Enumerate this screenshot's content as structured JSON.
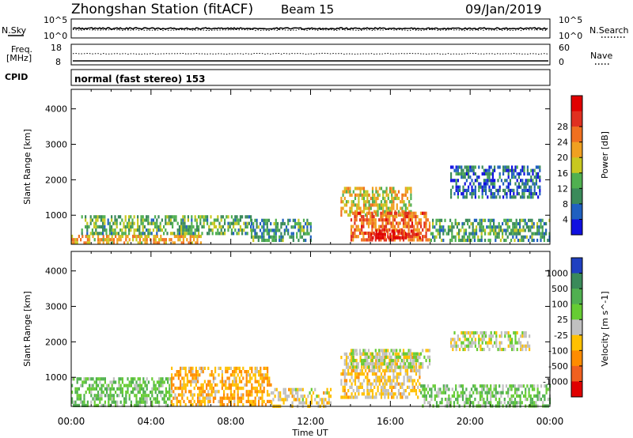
{
  "header": {
    "title": "Zhongshan Station (fitACF)",
    "beam": "Beam 15",
    "date": "09/Jan/2019"
  },
  "status_panels": {
    "nsky_label": "N.Sky",
    "nsky_ticks": [
      "10^5",
      "10^0"
    ],
    "nsearch_label": "N.Search",
    "nsearch_ticks": [
      "10^5",
      "10^0"
    ],
    "freq_label_line1": "Freq.",
    "freq_label_line2": "[MHz]",
    "freq_ticks": [
      "18",
      "8"
    ],
    "nave_label": "Nave",
    "nave_ticks": [
      "60",
      "0"
    ],
    "cpid_label": "CPID",
    "cpid_text": "normal (fast stereo) 153"
  },
  "colors": {
    "power_scale": [
      "#1010e0",
      "#2060c0",
      "#3a8a5a",
      "#50b050",
      "#c8c820",
      "#f0a020",
      "#f07020",
      "#e03020",
      "#e00000"
    ],
    "velocity_scale": [
      "#2040c0",
      "#3a8a5a",
      "#50b050",
      "#66cc33",
      "#c0c0c0",
      "#ffc000",
      "#ff8c00",
      "#f06020",
      "#e00000"
    ]
  },
  "chart_data": [
    {
      "type": "heatmap",
      "title": "",
      "xlabel": "",
      "ylabel": "Slant Range [km]",
      "x_tick_labels": [
        "00:00",
        "04:00",
        "08:00",
        "12:00",
        "16:00",
        "20:00",
        "00:00"
      ],
      "y_ticks": [
        1000,
        2000,
        3000,
        4000
      ],
      "ylim": [
        180,
        4550
      ],
      "colorbar_label": "Power [dB]",
      "colorbar_ticks": [
        "4",
        "8",
        "12",
        "16",
        "20",
        "24",
        "28"
      ],
      "colorbar_range": [
        0,
        30
      ],
      "regions": [
        {
          "t0": 0.0,
          "t1": 6.5,
          "r0": 200,
          "r1": 450,
          "v": 18
        },
        {
          "t0": 0.5,
          "t1": 9.0,
          "r0": 450,
          "r1": 1000,
          "v": 11
        },
        {
          "t0": 9.0,
          "t1": 12.0,
          "r0": 300,
          "r1": 900,
          "v": 9
        },
        {
          "t0": 13.5,
          "t1": 17.0,
          "r0": 1000,
          "r1": 1800,
          "v": 16
        },
        {
          "t0": 14.0,
          "t1": 18.0,
          "r0": 350,
          "r1": 1100,
          "v": 22
        },
        {
          "t0": 15.0,
          "t1": 17.5,
          "r0": 350,
          "r1": 600,
          "v": 28
        },
        {
          "t0": 18.0,
          "t1": 24.0,
          "r0": 250,
          "r1": 900,
          "v": 10
        },
        {
          "t0": 19.0,
          "t1": 23.5,
          "r0": 1500,
          "r1": 2400,
          "v": 6
        }
      ]
    },
    {
      "type": "heatmap",
      "title": "",
      "xlabel": "Time UT",
      "ylabel": "Slant Range [km]",
      "x_tick_labels": [
        "00:00",
        "04:00",
        "08:00",
        "12:00",
        "16:00",
        "20:00",
        "00:00"
      ],
      "y_ticks": [
        1000,
        2000,
        3000,
        4000
      ],
      "ylim": [
        180,
        4550
      ],
      "colorbar_label": "Velocity [m s^-1]",
      "colorbar_ticks": [
        "1000",
        "500",
        "100",
        "25",
        "-25",
        "-100",
        "-500",
        "-1000"
      ],
      "colorbar_range": [
        -1000,
        1000
      ],
      "regions": [
        {
          "t0": 0.0,
          "t1": 5.0,
          "r0": 200,
          "r1": 1000,
          "v": 300
        },
        {
          "t0": 5.0,
          "t1": 10.0,
          "r0": 250,
          "r1": 1300,
          "v": -300
        },
        {
          "t0": 10.0,
          "t1": 13.0,
          "r0": 200,
          "r1": 700,
          "v": -100
        },
        {
          "t0": 13.5,
          "t1": 17.5,
          "r0": 400,
          "r1": 1700,
          "v": -150
        },
        {
          "t0": 14.0,
          "t1": 18.0,
          "r0": 1300,
          "r1": 1800,
          "v": 60
        },
        {
          "t0": 17.5,
          "t1": 24.0,
          "r0": 200,
          "r1": 800,
          "v": 250
        },
        {
          "t0": 19.0,
          "t1": 23.0,
          "r0": 1800,
          "r1": 2300,
          "v": 0
        }
      ]
    }
  ]
}
